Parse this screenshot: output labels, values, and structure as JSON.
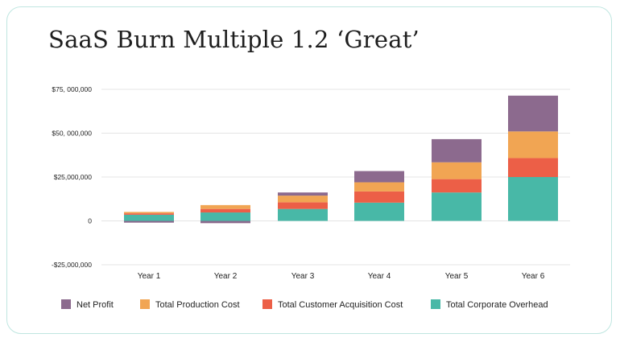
{
  "title": "SaaS Burn Multiple 1.2 ‘Great’",
  "colors": {
    "net_profit": "#8c6a8e",
    "production": "#f1a553",
    "acquisition": "#ec5f47",
    "overhead": "#48b8a7",
    "grid": "#e4e4e4",
    "border": "#bfe6e0"
  },
  "chart_data": {
    "type": "bar",
    "stacked": true,
    "title": "SaaS Burn Multiple 1.2 ‘Great’",
    "xlabel": "",
    "ylabel": "",
    "categories": [
      "Year 1",
      "Year 2",
      "Year 3",
      "Year 4",
      "Year 5",
      "Year 6"
    ],
    "ylim": [
      -25000000,
      75000000
    ],
    "yticks": [
      -25000000,
      0,
      25000000,
      50000000,
      75000000
    ],
    "ytick_labels": [
      "-$25,000,000",
      "0",
      "$25,000,000",
      "$50, 000,000",
      "$75, 000,000"
    ],
    "grid": true,
    "legend_position": "bottom",
    "series": [
      {
        "name": "Total Corporate Overhead",
        "color_key": "overhead",
        "values": [
          3500000,
          4800000,
          6800000,
          10400000,
          16200000,
          25000000
        ]
      },
      {
        "name": "Total Customer Acquisition Cost",
        "color_key": "acquisition",
        "values": [
          800000,
          2000000,
          3800000,
          6400000,
          7600000,
          10800000
        ]
      },
      {
        "name": "Total Production Cost",
        "color_key": "production",
        "values": [
          800000,
          2200000,
          3800000,
          5200000,
          9600000,
          15200000
        ]
      },
      {
        "name": "Net Profit",
        "color_key": "net_profit",
        "values": [
          -1000000,
          -1300000,
          1800000,
          6400000,
          13200000,
          20400000
        ]
      }
    ],
    "legend": [
      "Net Profit",
      "Total Production Cost",
      "Total Customer Acquisition Cost",
      "Total Corporate Overhead"
    ]
  }
}
